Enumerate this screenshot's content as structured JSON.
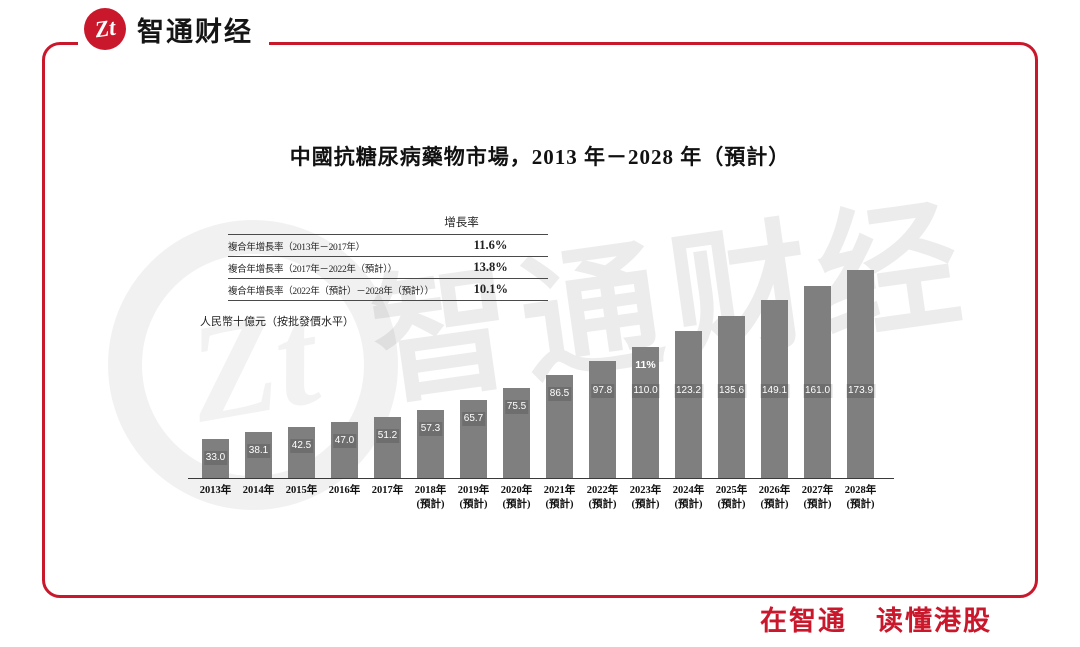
{
  "brand": {
    "name": "智通财经",
    "logo_monogram": "Zt",
    "slogan": "在智通　读懂港股",
    "accent_color": "#c9182c"
  },
  "watermark": {
    "text": "智通财经",
    "monogram": "Zt"
  },
  "chart_data": {
    "type": "bar",
    "title": "中國抗糖尿病藥物市場，2013 年－2028 年（預計）",
    "unit_label": "人民幣十億元（按批發價水平）",
    "bar_color": "#7f7f7f",
    "ylim": [
      0,
      180
    ],
    "grid": false,
    "legend": false,
    "categories": [
      {
        "year": "2013年",
        "note": ""
      },
      {
        "year": "2014年",
        "note": ""
      },
      {
        "year": "2015年",
        "note": ""
      },
      {
        "year": "2016年",
        "note": ""
      },
      {
        "year": "2017年",
        "note": ""
      },
      {
        "year": "2018年",
        "note": "(預計)"
      },
      {
        "year": "2019年",
        "note": "(預計)"
      },
      {
        "year": "2020年",
        "note": "(預計)"
      },
      {
        "year": "2021年",
        "note": "(預計)"
      },
      {
        "year": "2022年",
        "note": "(預計)"
      },
      {
        "year": "2023年",
        "note": "(預計)"
      },
      {
        "year": "2024年",
        "note": "(預計)"
      },
      {
        "year": "2025年",
        "note": "(預計)"
      },
      {
        "year": "2026年",
        "note": "(預計)"
      },
      {
        "year": "2027年",
        "note": "(預計)"
      },
      {
        "year": "2028年",
        "note": "(預計)"
      }
    ],
    "values": [
      33.0,
      38.1,
      42.5,
      47.0,
      51.2,
      57.3,
      65.7,
      75.5,
      86.5,
      97.8,
      110.0,
      123.2,
      135.6,
      149.1,
      161.0,
      173.9
    ],
    "value_labels": [
      "33.0",
      "38.1",
      "42.5",
      "47.0",
      "51.2",
      "57.3",
      "65.7",
      "75.5",
      "86.5",
      "97.8",
      "110.0",
      "123.2",
      "135.6",
      "149.1",
      "161.0",
      "173.9"
    ],
    "annotation": {
      "bar_index": 10,
      "text": "11%"
    },
    "growth_table": {
      "header": "增長率",
      "rows": [
        {
          "label": "複合年增長率（2013年－2017年）",
          "value": "11.6%"
        },
        {
          "label": "複合年增長率（2017年－2022年（預計））",
          "value": "13.8%"
        },
        {
          "label": "複合年增長率（2022年（預計）－2028年（預計））",
          "value": "10.1%"
        }
      ]
    }
  }
}
